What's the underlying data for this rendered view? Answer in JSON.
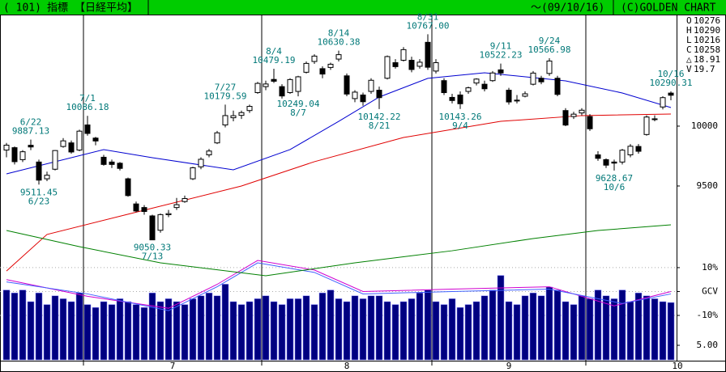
{
  "header": {
    "code": "( 101)",
    "label": "指標",
    "index": "【日経平均】",
    "date": "～(09/10/16)",
    "copyright": "(C)GOLDEN CHART"
  },
  "info": [
    {
      "label": "O",
      "value": 10276
    },
    {
      "label": "H",
      "value": 10290
    },
    {
      "label": "L",
      "value": 10216
    },
    {
      "label": "C",
      "value": 10258
    },
    {
      "label": "△",
      "value": 18.91
    },
    {
      "label": "V",
      "value": 19.7
    }
  ],
  "chart_data": {
    "type": "candlestick",
    "open": [
      9800,
      9820,
      9720,
      9840,
      9700,
      9560,
      9640,
      9830,
      9860,
      9800,
      10010,
      9900,
      9740,
      9700,
      9690,
      9560,
      9350,
      9320,
      9250,
      9130,
      9260,
      9320,
      9370,
      9560,
      9660,
      9760,
      9860,
      10010,
      10070,
      10090,
      10130,
      10280,
      10330,
      10390,
      10330,
      10280,
      10290,
      10450,
      10540,
      10480,
      10490,
      10560,
      10420,
      10230,
      10260,
      10290,
      10300,
      10400,
      10530,
      10550,
      10550,
      10500,
      10700,
      10460,
      10380,
      10240,
      10260,
      10290,
      10360,
      10350,
      10380,
      10470,
      10300,
      10210,
      10250,
      10350,
      10400,
      10440,
      10400,
      10130,
      10080,
      10110,
      10080,
      9760,
      9720,
      9700,
      9700,
      9760,
      9830,
      9930,
      10060,
      10160,
      10276
    ],
    "high": [
      9860,
      9830,
      9800,
      9887.13,
      9720,
      9620,
      9800,
      9900,
      9880,
      9970,
      10086.18,
      9910,
      9760,
      9720,
      9700,
      9570,
      9370,
      9340,
      9260,
      9270,
      9300,
      9400,
      9420,
      9660,
      9740,
      9810,
      9960,
      10179.59,
      10130,
      10130,
      10180,
      10370,
      10380,
      10479.19,
      10350,
      10400,
      10420,
      10540,
      10600,
      10500,
      10530,
      10630.38,
      10440,
      10300,
      10280,
      10400,
      10330,
      10590,
      10560,
      10660,
      10580,
      10560,
      10767,
      10560,
      10400,
      10270,
      10290,
      10330,
      10400,
      10380,
      10460,
      10522.23,
      10320,
      10260,
      10290,
      10460,
      10420,
      10566.98,
      10420,
      10150,
      10120,
      10150,
      10100,
      9790,
      9730,
      9720,
      9810,
      9850,
      9850,
      10090,
      10090,
      10250,
      10290
    ],
    "low": [
      9740,
      9680,
      9700,
      9800,
      9511.45,
      9540,
      9630,
      9820,
      9770,
      9790,
      9920,
      9840,
      9670,
      9650,
      9630,
      9410,
      9280,
      9260,
      9050.33,
      9110,
      9240,
      9300,
      9360,
      9550,
      9640,
      9740,
      9850,
      9990,
      10040,
      10060,
      10110,
      10270,
      10300,
      10360,
      10230,
      10270,
      10249.04,
      10440,
      10520,
      10400,
      10470,
      10540,
      10250,
      10200,
      10170,
      10270,
      10142.22,
      10390,
      10480,
      10540,
      10450,
      10480,
      10470,
      10440,
      10260,
      10190,
      10143.26,
      10270,
      10340,
      10290,
      10370,
      10420,
      10180,
      10190,
      10240,
      10340,
      10350,
      10420,
      10250,
      10000,
      10060,
      10090,
      9960,
      9710,
      9650,
      9628.67,
      9680,
      9740,
      9770,
      9920,
      10040,
      10140,
      10216
    ],
    "close": [
      9841,
      9703,
      9786,
      9826,
      9549,
      9590,
      9796,
      9877,
      9784,
      9958,
      9939,
      9876,
      9680,
      9680,
      9647,
      9420,
      9291,
      9287,
      9050,
      9261,
      9269,
      9344,
      9395,
      9652,
      9723,
      9792,
      9944,
      10088,
      10087,
      10113,
      10165,
      10357,
      10352,
      10375,
      10252,
      10389,
      10412,
      10524,
      10585,
      10435,
      10517,
      10597,
      10268,
      10284,
      10204,
      10383,
      10238,
      10581,
      10497,
      10639,
      10473,
      10534,
      10492,
      10530,
      10280,
      10214,
      10187,
      10320,
      10393,
      10312,
      10444,
      10444,
      10202,
      10217,
      10270,
      10443,
      10370,
      10544,
      10265,
      10009,
      10100,
      10133,
      9978,
      9731,
      9674,
      9691,
      9799,
      9832,
      9790,
      10076,
      10061,
      10238,
      10258
    ],
    "volume": [
      24,
      23,
      24,
      20,
      23,
      19,
      22,
      21,
      20,
      23,
      19,
      18,
      20,
      19,
      21,
      20,
      19,
      18,
      23,
      20,
      21,
      20,
      19,
      21,
      22,
      23,
      22,
      26,
      20,
      19,
      20,
      21,
      22,
      20,
      19,
      21,
      21,
      22,
      19,
      23,
      24,
      21,
      20,
      22,
      21,
      22,
      22,
      20,
      19,
      20,
      21,
      23,
      24,
      20,
      19,
      21,
      18,
      19,
      20,
      22,
      24,
      29,
      20,
      19,
      22,
      23,
      22,
      25,
      24,
      20,
      19,
      22,
      21,
      24,
      22,
      21,
      24,
      20,
      23,
      22,
      21,
      20,
      19.7
    ],
    "volume_color": "#000080",
    "moving_averages": [
      {
        "color": "#0000d0",
        "x": [
          0,
          12,
          18,
          28,
          35,
          41,
          46,
          52,
          59,
          69,
          76,
          82
        ],
        "values": [
          9601,
          9804,
          9736,
          9635,
          9804,
          10040,
          10243,
          10399,
          10446,
          10378,
          10277,
          10155
        ]
      },
      {
        "color": "#e00000",
        "x": [
          0,
          5,
          15,
          29,
          38,
          49,
          61,
          71,
          82
        ],
        "values": [
          8790,
          9095,
          9264,
          9500,
          9703,
          9905,
          10040,
          10088,
          10101
        ]
      },
      {
        "color": "#008000",
        "x": [
          0,
          9,
          19,
          32,
          43,
          55,
          65,
          73,
          82
        ],
        "values": [
          9128,
          8993,
          8858,
          8750,
          8858,
          8959,
          9061,
          9128,
          9176
        ]
      }
    ],
    "oscillators": [
      {
        "color": "#d000d0",
        "x": [
          0,
          10,
          20,
          26,
          31,
          38,
          44,
          55,
          67,
          75,
          82
        ],
        "values": [
          5,
          -2,
          -7,
          3,
          13,
          9,
          0,
          1,
          2,
          -6,
          0
        ]
      },
      {
        "color": "#4060ff",
        "x": [
          0,
          10,
          20,
          26,
          31,
          38,
          44,
          55,
          67,
          76,
          82
        ],
        "values": [
          4,
          -1,
          -8,
          2,
          12,
          8,
          -1,
          0,
          1,
          -5,
          -1
        ]
      }
    ],
    "annotations": [
      {
        "index": 3,
        "date": "6/22",
        "price": 9887.13,
        "position": "above"
      },
      {
        "index": 4,
        "date": "6/23",
        "price": 9511.45,
        "position": "below"
      },
      {
        "index": 10,
        "date": "7/1",
        "price": 10086.18,
        "position": "above"
      },
      {
        "index": 18,
        "date": "7/13",
        "price": 9050.33,
        "position": "below"
      },
      {
        "index": 27,
        "date": "7/27",
        "price": 10179.59,
        "position": "above"
      },
      {
        "index": 33,
        "date": "8/4",
        "price": 10479.19,
        "position": "above"
      },
      {
        "index": 36,
        "date": "8/7",
        "price": 10249.04,
        "position": "below"
      },
      {
        "index": 41,
        "date": "8/14",
        "price": 10630.38,
        "position": "above"
      },
      {
        "index": 46,
        "date": "8/21",
        "price": 10142.22,
        "position": "below"
      },
      {
        "index": 52,
        "date": "8/31",
        "price": {
          "value": 10767,
          "label": "10767.00"
        },
        "position": "above"
      },
      {
        "index": 56,
        "date": "9/4",
        "price": 10143.26,
        "position": "below"
      },
      {
        "index": 61,
        "date": "9/11",
        "price": 10522.23,
        "position": "above"
      },
      {
        "index": 67,
        "date": "9/24",
        "price": 10566.98,
        "position": "above"
      },
      {
        "index": 75,
        "date": "10/6",
        "price": 9628.67,
        "position": "below"
      },
      {
        "index": 82,
        "date": "10/16",
        "price": 10290.31,
        "position": "above"
      }
    ],
    "month_starts": [
      10,
      32,
      53,
      72
    ],
    "month_labels": [
      "7",
      "8",
      "9",
      "10"
    ],
    "ylim": [
      8723,
      10932
    ],
    "yticks": [
      10000,
      9500
    ],
    "vlim": [
      0,
      30
    ],
    "vticks": [
      {
        "value": 5,
        "label": "5.00"
      }
    ],
    "y2lim": [
      -28.6,
      13.7
    ],
    "y2ticks": [
      {
        "value": 10,
        "label": "10%"
      },
      {
        "value": 0,
        "label": "GCV"
      },
      {
        "value": -10,
        "label": "-10%"
      }
    ]
  }
}
